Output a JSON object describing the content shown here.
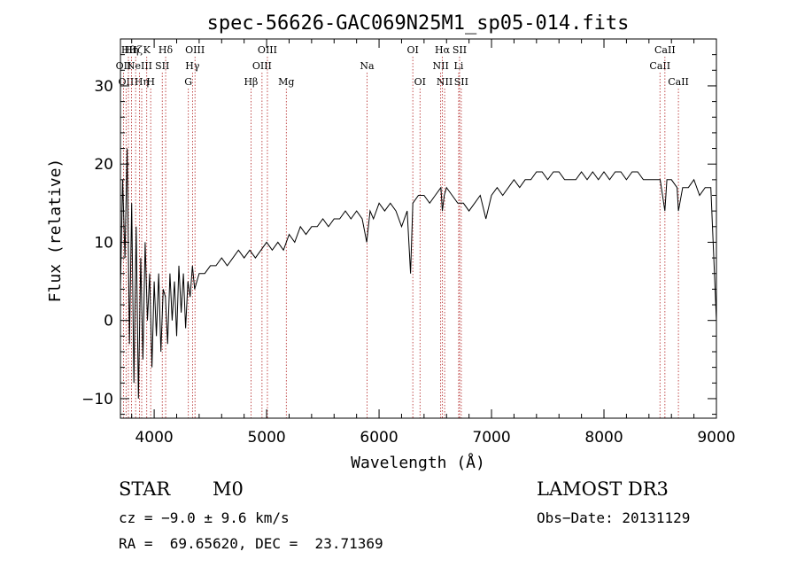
{
  "chart_data": {
    "type": "line",
    "title": "spec-56626-GAC069N25M1_sp05-014.fits",
    "xlabel": "Wavelength (Å)",
    "ylabel": "Flux (relative)",
    "xlim": [
      3700,
      9000
    ],
    "ylim": [
      -12.5,
      36
    ],
    "xticks": [
      4000,
      5000,
      6000,
      7000,
      8000,
      9000
    ],
    "yticks": [
      -10,
      0,
      10,
      20,
      30
    ],
    "xtick_labels": [
      "4000",
      "5000",
      "6000",
      "7000",
      "8000",
      "9000"
    ],
    "ytick_labels": [
      "−10",
      "0",
      "10",
      "20",
      "30"
    ],
    "grid": false,
    "series": [
      {
        "color": "#000000",
        "x": [
          3700,
          3720,
          3740,
          3760,
          3780,
          3800,
          3820,
          3840,
          3860,
          3880,
          3900,
          3920,
          3940,
          3960,
          3980,
          4000,
          4020,
          4040,
          4060,
          4080,
          4100,
          4120,
          4140,
          4160,
          4180,
          4200,
          4220,
          4240,
          4260,
          4280,
          4300,
          4320,
          4340,
          4360,
          4380,
          4400,
          4450,
          4500,
          4550,
          4600,
          4650,
          4700,
          4750,
          4800,
          4850,
          4900,
          4950,
          5000,
          5050,
          5100,
          5150,
          5200,
          5250,
          5300,
          5350,
          5400,
          5450,
          5500,
          5550,
          5600,
          5650,
          5700,
          5750,
          5800,
          5850,
          5890,
          5920,
          5950,
          6000,
          6050,
          6100,
          6150,
          6200,
          6250,
          6280,
          6300,
          6350,
          6400,
          6450,
          6500,
          6550,
          6563,
          6580,
          6600,
          6650,
          6700,
          6750,
          6800,
          6850,
          6900,
          6950,
          7000,
          7050,
          7100,
          7150,
          7200,
          7250,
          7300,
          7350,
          7400,
          7450,
          7500,
          7550,
          7600,
          7650,
          7700,
          7750,
          7800,
          7850,
          7900,
          7950,
          8000,
          8050,
          8100,
          8150,
          8200,
          8250,
          8300,
          8350,
          8400,
          8450,
          8500,
          8542,
          8560,
          8600,
          8650,
          8662,
          8700,
          8750,
          8800,
          8850,
          8900,
          8950,
          9000
        ],
        "y": [
          4,
          18,
          8,
          22,
          -3,
          15,
          -8,
          12,
          -10,
          8,
          -5,
          10,
          0,
          6,
          -6,
          5,
          -2,
          6,
          -4,
          4,
          3,
          -3,
          6,
          0,
          5,
          -2,
          7,
          1,
          6,
          -1,
          5,
          3,
          7,
          4,
          5,
          6,
          6,
          7,
          7,
          8,
          7,
          8,
          9,
          8,
          9,
          8,
          9,
          10,
          9,
          10,
          9,
          11,
          10,
          12,
          11,
          12,
          12,
          13,
          12,
          13,
          13,
          14,
          13,
          14,
          13,
          10,
          14,
          13,
          15,
          14,
          15,
          14,
          12,
          14,
          6,
          15,
          16,
          16,
          15,
          16,
          17,
          14,
          16,
          17,
          16,
          15,
          15,
          14,
          15,
          16,
          13,
          16,
          17,
          16,
          17,
          18,
          17,
          18,
          18,
          19,
          19,
          18,
          19,
          19,
          18,
          18,
          18,
          19,
          18,
          19,
          18,
          19,
          18,
          19,
          19,
          18,
          19,
          19,
          18,
          18,
          18,
          18,
          14,
          18,
          18,
          17,
          14,
          17,
          17,
          18,
          16,
          17,
          17,
          0
        ]
      }
    ],
    "line_marks": [
      {
        "wl": 3727,
        "row": 1,
        "label": "OII"
      },
      {
        "wl": 3750,
        "row": 2,
        "label": "OII"
      },
      {
        "wl": 3771,
        "row": 0,
        "label": "Hθ"
      },
      {
        "wl": 3798,
        "row": 0,
        "label": "Hη"
      },
      {
        "wl": 3835,
        "row": 0,
        "label": "Hζ"
      },
      {
        "wl": 3869,
        "row": 1,
        "label": "NeIII"
      },
      {
        "wl": 3889,
        "row": 2,
        "label": "Hη"
      },
      {
        "wl": 3934,
        "row": 0,
        "label": "K"
      },
      {
        "wl": 3969,
        "row": 2,
        "label": "H"
      },
      {
        "wl": 4072,
        "row": 1,
        "label": "SII"
      },
      {
        "wl": 4102,
        "row": 0,
        "label": "Hδ"
      },
      {
        "wl": 4304,
        "row": 2,
        "label": "G"
      },
      {
        "wl": 4341,
        "row": 1,
        "label": "Hγ"
      },
      {
        "wl": 4363,
        "row": 0,
        "label": "OIII"
      },
      {
        "wl": 4861,
        "row": 2,
        "label": "Hβ"
      },
      {
        "wl": 4959,
        "row": 1,
        "label": "OIII"
      },
      {
        "wl": 5007,
        "row": 0,
        "label": "OIII"
      },
      {
        "wl": 5175,
        "row": 2,
        "label": "Mg"
      },
      {
        "wl": 5893,
        "row": 1,
        "label": "Na"
      },
      {
        "wl": 6300,
        "row": 0,
        "label": "OI"
      },
      {
        "wl": 6364,
        "row": 2,
        "label": "OI"
      },
      {
        "wl": 6548,
        "row": 1,
        "label": "NII"
      },
      {
        "wl": 6563,
        "row": 0,
        "label": "Hα"
      },
      {
        "wl": 6583,
        "row": 2,
        "label": "NII"
      },
      {
        "wl": 6708,
        "row": 1,
        "label": "Li"
      },
      {
        "wl": 6716,
        "row": 0,
        "label": "SII"
      },
      {
        "wl": 6731,
        "row": 2,
        "label": "SII"
      },
      {
        "wl": 8498,
        "row": 1,
        "label": "CaII"
      },
      {
        "wl": 8542,
        "row": 0,
        "label": "CaII"
      },
      {
        "wl": 8662,
        "row": 2,
        "label": "CaII"
      }
    ]
  },
  "info": {
    "class_label": "STAR",
    "subclass": "M0",
    "cz": "cz = −9.0 ± 9.6 km/s",
    "coords": "RA =  69.65620, DEC =  23.71369",
    "survey": "LAMOST DR3",
    "obs_date": "Obs−Date: 20131129"
  }
}
